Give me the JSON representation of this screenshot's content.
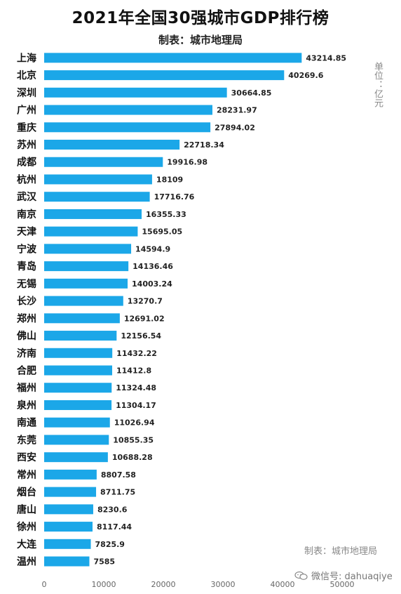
{
  "chart_data": {
    "type": "bar",
    "orientation": "horizontal",
    "title": "2021年全国30强城市GDP排行榜",
    "subtitle": "制表：城市地理局",
    "unit": "单位：亿元",
    "xlabel": "",
    "ylabel": "",
    "xlim": [
      0,
      50000
    ],
    "xticks": [
      "0",
      "10000",
      "20000",
      "30000",
      "40000",
      "50000"
    ],
    "grid": false,
    "bar_color": "#1ba7e8",
    "categories": [
      "上海",
      "北京",
      "深圳",
      "广州",
      "重庆",
      "苏州",
      "成都",
      "杭州",
      "武汉",
      "南京",
      "天津",
      "宁波",
      "青岛",
      "无锡",
      "长沙",
      "郑州",
      "佛山",
      "济南",
      "合肥",
      "福州",
      "泉州",
      "南通",
      "东莞",
      "西安",
      "常州",
      "烟台",
      "唐山",
      "徐州",
      "大连",
      "温州"
    ],
    "values": [
      43214.85,
      40269.6,
      30664.85,
      28231.97,
      27894.02,
      22718.34,
      19916.98,
      18109,
      17716.76,
      16355.33,
      15695.05,
      14594.9,
      14136.46,
      14003.24,
      13270.7,
      12691.02,
      12156.54,
      11432.22,
      11412.8,
      11324.48,
      11304.17,
      11026.94,
      10855.35,
      10688.28,
      8807.58,
      8711.75,
      8230.6,
      8117.44,
      7825.9,
      7585
    ],
    "value_labels": [
      "43214.85",
      "40269.6",
      "30664.85",
      "28231.97",
      "27894.02",
      "22718.34",
      "19916.98",
      "18109",
      "17716.76",
      "16355.33",
      "15695.05",
      "14594.9",
      "14136.46",
      "14003.24",
      "13270.7",
      "12691.02",
      "12156.54",
      "11432.22",
      "11412.8",
      "11324.48",
      "11304.17",
      "11026.94",
      "10855.35",
      "10688.28",
      "8807.58",
      "8711.75",
      "8230.6",
      "8117.44",
      "7825.9",
      "7585"
    ]
  },
  "watermark": {
    "source": "制表：城市地理局",
    "wechat_label": "微信号: dahuaqiye",
    "wechat_icon": "wechat-icon"
  }
}
